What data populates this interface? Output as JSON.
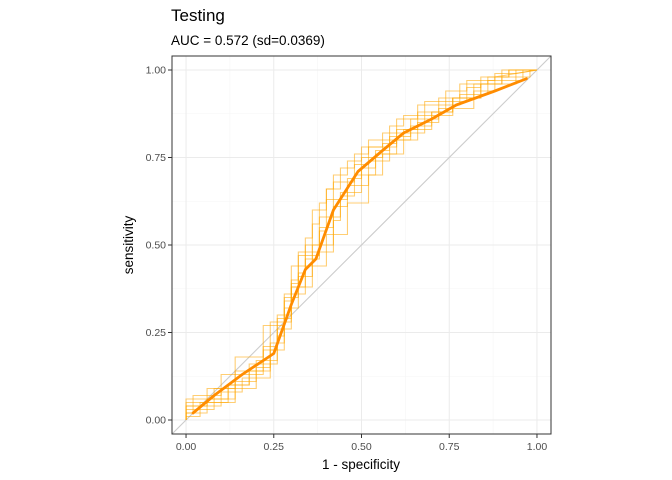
{
  "chart_data": {
    "type": "line",
    "title": "Testing",
    "subtitle": "AUC = 0.572 (sd=0.0369)",
    "xlabel": "1 - specificity",
    "ylabel": "sensitivity",
    "xlim": [
      -0.04,
      1.04
    ],
    "ylim": [
      -0.04,
      1.04
    ],
    "xticks": [
      0,
      0.25,
      0.5,
      0.75,
      1
    ],
    "yticks": [
      0,
      0.25,
      0.5,
      0.75,
      1
    ],
    "xtick_labels": [
      "0.00",
      "0.25",
      "0.50",
      "0.75",
      "1.00"
    ],
    "ytick_labels": [
      "0.00",
      "0.25",
      "0.50",
      "0.75",
      "1.00"
    ],
    "grid": true,
    "legend": "none",
    "colors": {
      "main_curve": "#ff8c00",
      "resample_curves": "#ffa500",
      "diagonal": "#cccccc",
      "grid_major": "#ebebeb",
      "grid_minor": "#f5f5f5",
      "panel_border": "#333333"
    },
    "diagonal": {
      "x": [
        -0.04,
        1.04
      ],
      "y": [
        -0.04,
        1.04
      ]
    },
    "main_curve": {
      "x": [
        0.02,
        0.08,
        0.16,
        0.25,
        0.3,
        0.34,
        0.37,
        0.42,
        0.49,
        0.56,
        0.62,
        0.7,
        0.77,
        0.88,
        0.97
      ],
      "y": [
        0.02,
        0.07,
        0.13,
        0.19,
        0.33,
        0.43,
        0.46,
        0.6,
        0.71,
        0.77,
        0.82,
        0.86,
        0.9,
        0.94,
        0.975
      ]
    },
    "resample_curves": [
      {
        "x": [
          0,
          0,
          0.06,
          0.06,
          0.12,
          0.12,
          0.18,
          0.18,
          0.22,
          0.22,
          0.26,
          0.26,
          0.3,
          0.3,
          0.32,
          0.32,
          0.36,
          0.36,
          0.38,
          0.38,
          0.4,
          0.4,
          0.42,
          0.42,
          0.46,
          0.46,
          0.5,
          0.5,
          0.56,
          0.56,
          0.6,
          0.6,
          0.66,
          0.66,
          0.72,
          0.72,
          0.78,
          0.78,
          0.86,
          0.86,
          0.92,
          0.92,
          1
        ],
        "y": [
          0,
          0.02,
          0.02,
          0.06,
          0.06,
          0.1,
          0.1,
          0.14,
          0.14,
          0.2,
          0.2,
          0.3,
          0.3,
          0.4,
          0.4,
          0.48,
          0.48,
          0.56,
          0.56,
          0.62,
          0.62,
          0.66,
          0.66,
          0.7,
          0.7,
          0.74,
          0.74,
          0.78,
          0.78,
          0.82,
          0.82,
          0.86,
          0.86,
          0.9,
          0.9,
          0.92,
          0.92,
          0.96,
          0.96,
          0.98,
          0.98,
          1,
          1
        ]
      },
      {
        "x": [
          0,
          0,
          0.1,
          0.1,
          0.16,
          0.16,
          0.24,
          0.24,
          0.28,
          0.28,
          0.32,
          0.32,
          0.34,
          0.34,
          0.38,
          0.38,
          0.44,
          0.44,
          0.48,
          0.48,
          0.54,
          0.54,
          0.6,
          0.6,
          0.64,
          0.64,
          0.7,
          0.7,
          0.76,
          0.76,
          0.82,
          0.82,
          0.9,
          0.9,
          0.98,
          0.98,
          1
        ],
        "y": [
          0,
          0.04,
          0.04,
          0.08,
          0.08,
          0.12,
          0.12,
          0.2,
          0.2,
          0.32,
          0.32,
          0.42,
          0.42,
          0.5,
          0.5,
          0.58,
          0.58,
          0.64,
          0.64,
          0.7,
          0.7,
          0.76,
          0.76,
          0.8,
          0.8,
          0.84,
          0.84,
          0.88,
          0.88,
          0.92,
          0.92,
          0.96,
          0.96,
          0.98,
          0.98,
          1,
          1
        ]
      },
      {
        "x": [
          0,
          0,
          0.04,
          0.04,
          0.14,
          0.14,
          0.2,
          0.2,
          0.26,
          0.26,
          0.28,
          0.28,
          0.3,
          0.3,
          0.34,
          0.34,
          0.36,
          0.36,
          0.4,
          0.4,
          0.44,
          0.44,
          0.48,
          0.48,
          0.52,
          0.52,
          0.58,
          0.58,
          0.62,
          0.62,
          0.68,
          0.68,
          0.74,
          0.74,
          0.8,
          0.8,
          0.88,
          0.88,
          0.94,
          0.94,
          1
        ],
        "y": [
          0,
          0.01,
          0.01,
          0.05,
          0.05,
          0.11,
          0.11,
          0.17,
          0.17,
          0.24,
          0.24,
          0.34,
          0.34,
          0.44,
          0.44,
          0.52,
          0.52,
          0.6,
          0.6,
          0.66,
          0.66,
          0.72,
          0.72,
          0.76,
          0.76,
          0.8,
          0.8,
          0.84,
          0.84,
          0.87,
          0.87,
          0.91,
          0.91,
          0.94,
          0.94,
          0.97,
          0.97,
          0.99,
          0.99,
          1,
          1
        ]
      },
      {
        "x": [
          0,
          0,
          0.08,
          0.08,
          0.2,
          0.2,
          0.24,
          0.24,
          0.28,
          0.28,
          0.34,
          0.34,
          0.38,
          0.38,
          0.4,
          0.4,
          0.46,
          0.46,
          0.5,
          0.5,
          0.56,
          0.56,
          0.6,
          0.6,
          0.66,
          0.66,
          0.74,
          0.74,
          0.8,
          0.8,
          0.84,
          0.84,
          0.92,
          0.92,
          1
        ],
        "y": [
          0,
          0.03,
          0.03,
          0.09,
          0.09,
          0.15,
          0.15,
          0.22,
          0.22,
          0.36,
          0.36,
          0.46,
          0.46,
          0.54,
          0.54,
          0.63,
          0.63,
          0.69,
          0.69,
          0.75,
          0.75,
          0.79,
          0.79,
          0.83,
          0.83,
          0.88,
          0.88,
          0.91,
          0.91,
          0.95,
          0.95,
          0.98,
          0.98,
          1,
          1
        ]
      },
      {
        "x": [
          0,
          0,
          0.12,
          0.12,
          0.18,
          0.18,
          0.26,
          0.26,
          0.3,
          0.3,
          0.36,
          0.36,
          0.42,
          0.42,
          0.44,
          0.44,
          0.5,
          0.5,
          0.54,
          0.54,
          0.58,
          0.58,
          0.64,
          0.64,
          0.72,
          0.72,
          0.78,
          0.78,
          0.86,
          0.86,
          0.96,
          0.96,
          1
        ],
        "y": [
          0,
          0.05,
          0.05,
          0.1,
          0.1,
          0.16,
          0.16,
          0.26,
          0.26,
          0.38,
          0.38,
          0.48,
          0.48,
          0.57,
          0.57,
          0.65,
          0.65,
          0.72,
          0.72,
          0.77,
          0.77,
          0.81,
          0.81,
          0.86,
          0.86,
          0.9,
          0.9,
          0.93,
          0.93,
          0.97,
          0.97,
          1,
          1
        ]
      },
      {
        "x": [
          0,
          0,
          0.02,
          0.02,
          0.1,
          0.1,
          0.22,
          0.22,
          0.26,
          0.26,
          0.3,
          0.3,
          0.32,
          0.32,
          0.38,
          0.38,
          0.42,
          0.42,
          0.48,
          0.48,
          0.52,
          0.52,
          0.6,
          0.6,
          0.68,
          0.68,
          0.76,
          0.76,
          0.84,
          0.84,
          0.9,
          0.9,
          1
        ],
        "y": [
          0,
          0.02,
          0.02,
          0.07,
          0.07,
          0.13,
          0.13,
          0.21,
          0.21,
          0.29,
          0.29,
          0.39,
          0.39,
          0.47,
          0.47,
          0.55,
          0.55,
          0.68,
          0.68,
          0.73,
          0.73,
          0.78,
          0.78,
          0.82,
          0.82,
          0.87,
          0.87,
          0.92,
          0.92,
          0.96,
          0.96,
          1,
          1
        ]
      },
      {
        "x": [
          0,
          0,
          0.06,
          0.06,
          0.14,
          0.14,
          0.22,
          0.22,
          0.28,
          0.28,
          0.32,
          0.32,
          0.36,
          0.36,
          0.42,
          0.42,
          0.46,
          0.46,
          0.52,
          0.52,
          0.58,
          0.58,
          0.66,
          0.66,
          0.72,
          0.72,
          0.82,
          0.82,
          0.88,
          0.88,
          1
        ],
        "y": [
          0,
          0.04,
          0.04,
          0.09,
          0.09,
          0.18,
          0.18,
          0.27,
          0.27,
          0.35,
          0.35,
          0.41,
          0.41,
          0.5,
          0.5,
          0.61,
          0.61,
          0.67,
          0.67,
          0.74,
          0.74,
          0.8,
          0.8,
          0.85,
          0.85,
          0.89,
          0.89,
          0.94,
          0.94,
          0.98,
          1
        ]
      },
      {
        "x": [
          0,
          0,
          0.14,
          0.14,
          0.24,
          0.24,
          0.3,
          0.3,
          0.34,
          0.34,
          0.4,
          0.4,
          0.46,
          0.46,
          0.52,
          0.52,
          0.56,
          0.56,
          0.62,
          0.62,
          0.7,
          0.7,
          0.76,
          0.76,
          0.84,
          0.84,
          0.94,
          0.94,
          1
        ],
        "y": [
          0,
          0.06,
          0.06,
          0.14,
          0.14,
          0.28,
          0.28,
          0.38,
          0.38,
          0.44,
          0.44,
          0.53,
          0.53,
          0.62,
          0.62,
          0.7,
          0.7,
          0.76,
          0.76,
          0.83,
          0.83,
          0.88,
          0.88,
          0.92,
          0.92,
          0.96,
          0.96,
          0.99,
          1
        ]
      }
    ]
  }
}
